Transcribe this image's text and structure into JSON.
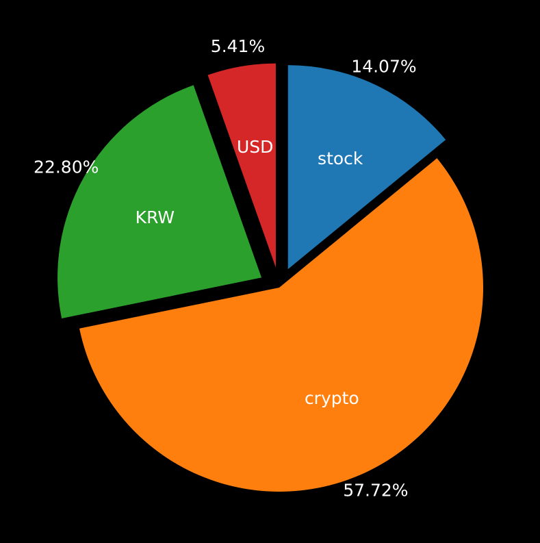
{
  "chart_data": {
    "type": "pie",
    "start_angle_deg": 90,
    "direction": "clockwise",
    "background": "#000000",
    "label_color": "#ffffff",
    "slices": [
      {
        "label": "stock",
        "value": 14.07,
        "pct_label": "14.07%",
        "color": "#1f77b4",
        "exploded": true
      },
      {
        "label": "crypto",
        "value": 57.72,
        "pct_label": "57.72%",
        "color": "#ff7f0e",
        "exploded": false
      },
      {
        "label": "KRW",
        "value": 22.8,
        "pct_label": "22.80%",
        "color": "#2ca02c",
        "exploded": true
      },
      {
        "label": "USD",
        "value": 5.41,
        "pct_label": "5.41%",
        "color": "#d62728",
        "exploded": true
      }
    ]
  }
}
